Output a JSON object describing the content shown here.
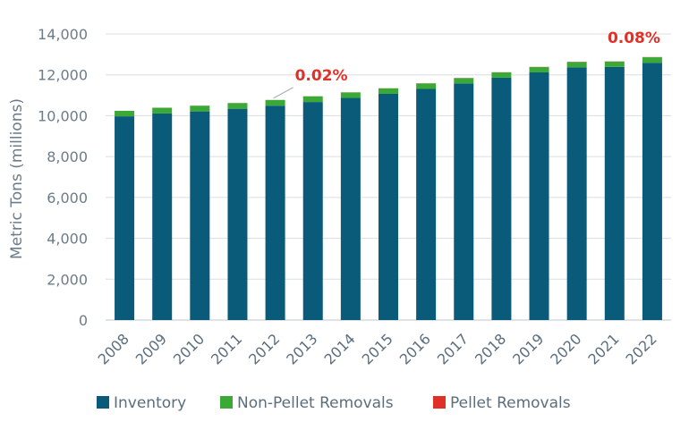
{
  "chart_data": {
    "type": "bar",
    "stacked": true,
    "categories": [
      "2008",
      "2009",
      "2010",
      "2011",
      "2012",
      "2013",
      "2014",
      "2015",
      "2016",
      "2017",
      "2018",
      "2019",
      "2020",
      "2021",
      "2022"
    ],
    "series": [
      {
        "name": "Inventory",
        "color": "#0a5a7a",
        "values": [
          9970,
          10110,
          10210,
          10340,
          10490,
          10670,
          10870,
          11070,
          11310,
          11580,
          11860,
          12120,
          12370,
          12390,
          12590
        ]
      },
      {
        "name": "Non-Pellet Removals",
        "color": "#3aa935",
        "values": [
          270,
          280,
          280,
          280,
          280,
          280,
          270,
          270,
          270,
          260,
          260,
          260,
          260,
          260,
          270
        ]
      },
      {
        "name": "Pellet Removals",
        "color": "#e03128",
        "values": [
          1,
          1,
          1,
          1,
          2,
          3,
          4,
          5,
          6,
          6,
          7,
          8,
          9,
          9,
          10
        ]
      }
    ],
    "ylabel": "Metric Tons (millions)",
    "ylim": [
      0,
      14000
    ],
    "yticks": [
      0,
      2000,
      4000,
      6000,
      8000,
      10000,
      12000,
      14000
    ],
    "ytick_labels": [
      "0",
      "2,000",
      "4,000",
      "6,000",
      "8,000",
      "10,000",
      "12,000",
      "14,000"
    ],
    "grid": true,
    "legend_position": "bottom",
    "annotations": [
      {
        "text": "0.02%",
        "category": "2012"
      },
      {
        "text": "0.08%",
        "category": "2022"
      }
    ]
  }
}
